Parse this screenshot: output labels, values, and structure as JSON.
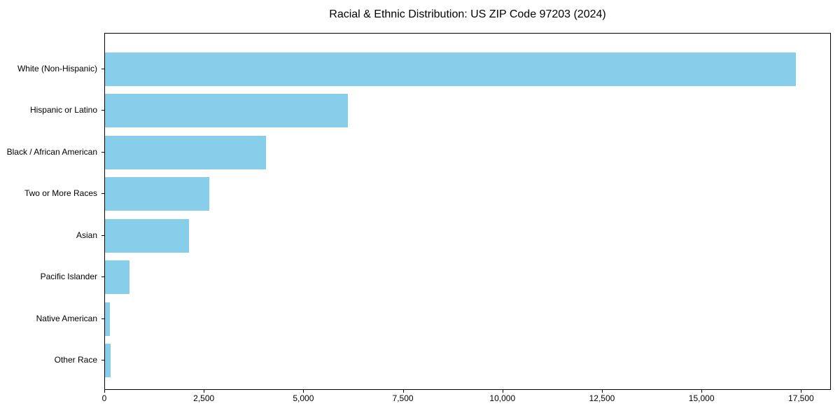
{
  "chart_data": {
    "type": "bar",
    "orientation": "horizontal",
    "title": "Racial & Ethnic Distribution: US ZIP Code 97203 (2024)",
    "categories": [
      "White (Non-Hispanic)",
      "Hispanic or Latino",
      "Black / African American",
      "Two or More Races",
      "Asian",
      "Pacific Islander",
      "Native American",
      "Other Race"
    ],
    "values": [
      17380,
      6110,
      4050,
      2620,
      2110,
      620,
      120,
      140
    ],
    "xlabel": "",
    "ylabel": "",
    "xlim": [
      0,
      18250
    ],
    "x_ticks": [
      0,
      2500,
      5000,
      7500,
      10000,
      12500,
      15000,
      17500
    ],
    "x_tick_labels": [
      "0",
      "2,500",
      "5,000",
      "7,500",
      "10,000",
      "12,500",
      "15,000",
      "17,500"
    ],
    "bar_color": "#87CEEB",
    "spine_color": "#000000",
    "background_color": "#ffffff",
    "grid": false,
    "legend": false
  }
}
